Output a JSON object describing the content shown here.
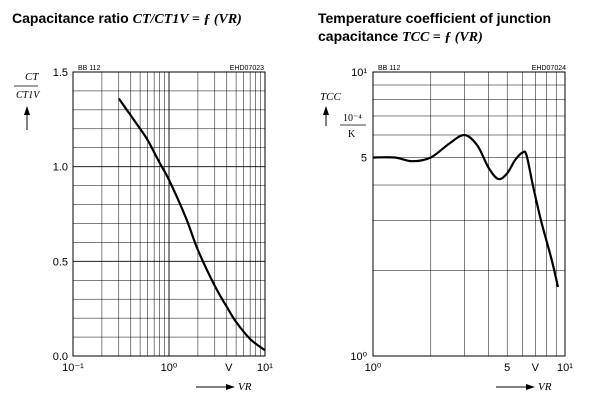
{
  "charts": {
    "left": {
      "title_prefix": "Capacitance ratio ",
      "title_formula": "CT/CT1V = ƒ (VR)",
      "part_label": "BB 112",
      "figure_code": "EHD07023",
      "ylabel_top": "CT",
      "ylabel_bottom": "CT1V",
      "xlabel": "VR"
    },
    "right": {
      "title_line1": "Temperature coefficient of junction",
      "title_line2_prefix": "capacitance ",
      "title_line2_formula": "TCC = ƒ (VR)",
      "part_label": "BB 112",
      "figure_code": "EHD07024",
      "ylabel_top": "TCC",
      "ylabel_unit_top": "10⁻⁴",
      "ylabel_unit_bottom": "K",
      "xlabel": "VR"
    }
  },
  "chart_data": [
    {
      "type": "line",
      "title": "Capacitance ratio CT/CT1V = ƒ (VR)",
      "xlabel": "VR",
      "ylabel": "CT/CT1V",
      "xscale": "log",
      "xlim": [
        0.1,
        10
      ],
      "ylim": [
        0,
        1.5
      ],
      "grid": true,
      "x_ticks": [
        "10⁻¹",
        "10⁰",
        "V",
        "10¹"
      ],
      "y_ticks": [
        "0.0",
        "0.5",
        "1.0",
        "1.5"
      ],
      "series": [
        {
          "x": [
            0.3,
            0.4,
            0.5,
            0.6,
            0.8,
            1.0,
            1.5,
            2.0,
            3.0,
            4.0,
            5.0,
            7.0,
            10.0
          ],
          "y": [
            1.36,
            1.27,
            1.2,
            1.14,
            1.02,
            0.93,
            0.73,
            0.56,
            0.37,
            0.26,
            0.18,
            0.09,
            0.03
          ]
        }
      ]
    },
    {
      "type": "line",
      "title": "Temperature coefficient of junction capacitance TCC = ƒ (VR)",
      "xlabel": "VR",
      "ylabel": "TCC 10⁻⁴/K",
      "xscale": "log",
      "yscale": "log",
      "xlim": [
        1,
        10
      ],
      "ylim": [
        1,
        10
      ],
      "grid": true,
      "x_ticks": [
        "10⁰",
        "5",
        "V",
        "10¹"
      ],
      "y_ticks": [
        "10⁰",
        "5",
        "10¹"
      ],
      "series": [
        {
          "x": [
            1.0,
            1.3,
            1.6,
            2.0,
            2.5,
            3.0,
            3.5,
            4.0,
            4.5,
            5.0,
            5.5,
            6.0,
            6.3,
            6.8,
            7.5,
            8.5,
            9.2
          ],
          "y": [
            5.0,
            5.0,
            4.85,
            5.0,
            5.6,
            6.0,
            5.5,
            4.6,
            4.2,
            4.4,
            4.9,
            5.2,
            5.1,
            4.0,
            3.0,
            2.2,
            1.75
          ]
        }
      ]
    }
  ]
}
